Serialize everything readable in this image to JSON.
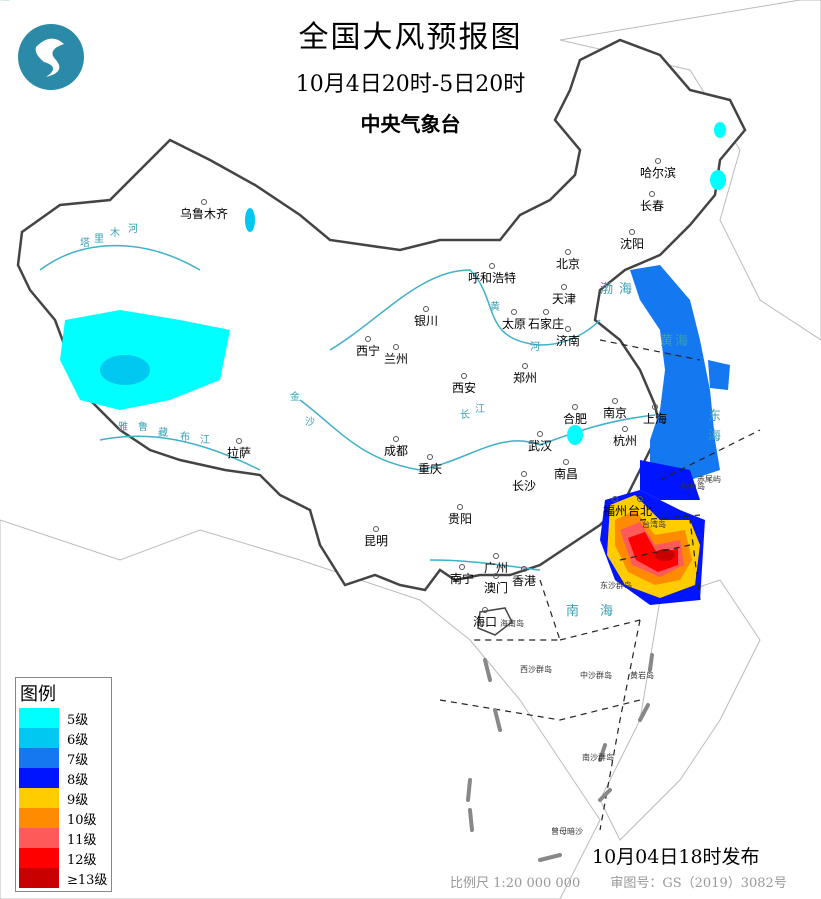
{
  "header": {
    "title": "全国大风预报图",
    "period": "10月4日20时-5日20时",
    "issuer": "中央气象台"
  },
  "legend": {
    "title": "图例",
    "items": [
      {
        "label": "5级",
        "color": "#00ffff"
      },
      {
        "label": "6级",
        "color": "#00c8f0"
      },
      {
        "label": "7级",
        "color": "#1478f0"
      },
      {
        "label": "8级",
        "color": "#0014ff"
      },
      {
        "label": "9级",
        "color": "#ffcc00"
      },
      {
        "label": "10级",
        "color": "#ff8c00"
      },
      {
        "label": "11级",
        "color": "#ff5a5a"
      },
      {
        "label": "12级",
        "color": "#ff0000"
      },
      {
        "label": "≥13级",
        "color": "#c80000"
      }
    ]
  },
  "footer": {
    "issued": "10月04日18时发布",
    "scale": "比例尺 1:20 000 000",
    "approval": "审图号：GS（2019）3082号"
  },
  "map": {
    "cities": [
      "乌鲁木齐",
      "哈尔滨",
      "长春",
      "沈阳",
      "北京",
      "天津",
      "呼和浩特",
      "石家庄",
      "太原",
      "济南",
      "银川",
      "西宁",
      "兰州",
      "西安",
      "郑州",
      "合肥",
      "南京",
      "上海",
      "杭州",
      "武汉",
      "成都",
      "重庆",
      "长沙",
      "南昌",
      "贵阳",
      "昆明",
      "拉萨",
      "福州",
      "台北",
      "南宁",
      "广州",
      "澳门",
      "香港",
      "海口"
    ],
    "islands": [
      "台湾岛",
      "钓鱼岛",
      "赤尾屿",
      "东沙群岛",
      "海南岛",
      "西沙群岛",
      "中沙群岛",
      "黄岩岛",
      "南沙群岛",
      "曾母暗沙"
    ],
    "rivers": [
      "塔",
      "里",
      "木",
      "河",
      "黄",
      "河",
      "长",
      "江",
      "雅",
      "鲁",
      "藏",
      "布",
      "江",
      "金",
      "沙",
      "江"
    ],
    "seas": [
      "渤",
      "海",
      "黄",
      "海",
      "东",
      "海",
      "南",
      "海"
    ]
  }
}
